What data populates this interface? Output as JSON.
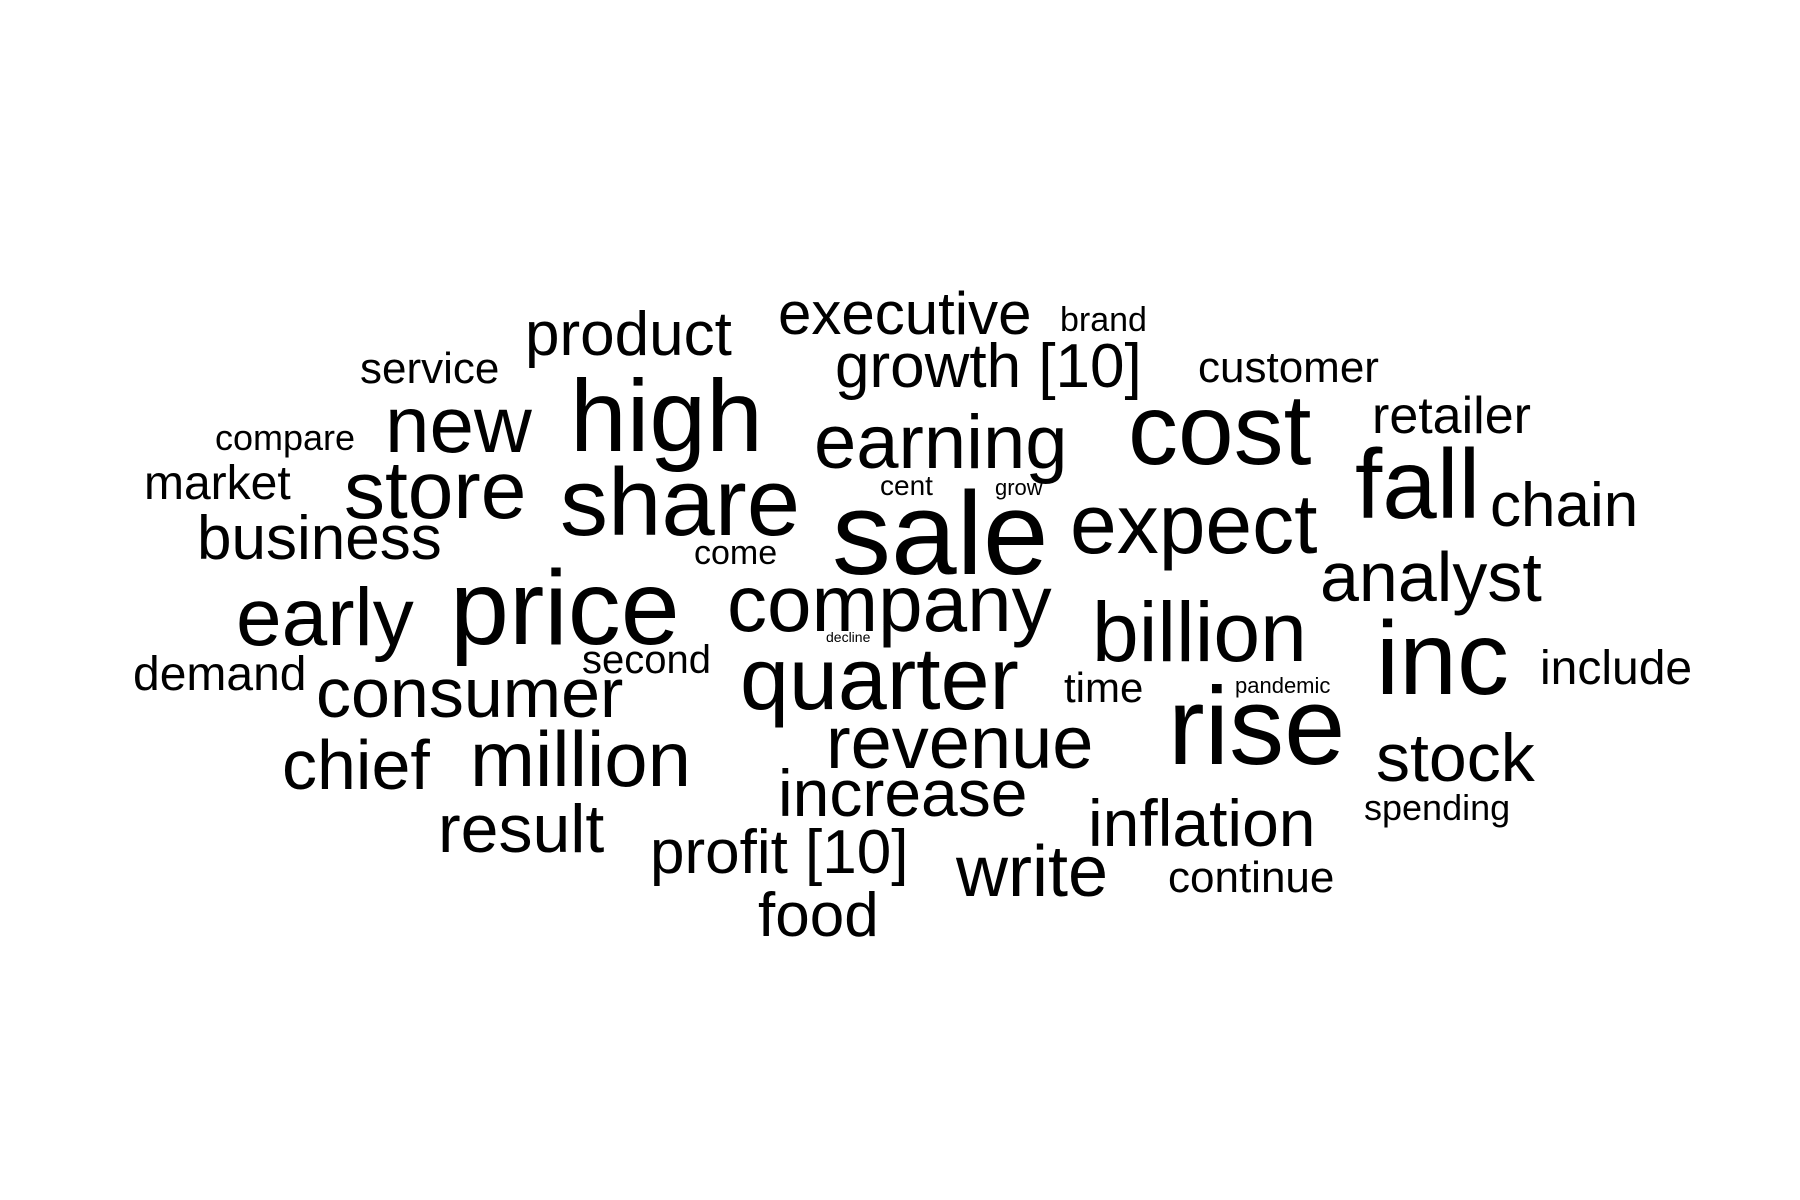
{
  "text_color": "#000000",
  "background": "#ffffff",
  "words": [
    "executive",
    "brand",
    "product",
    "growth [10]",
    "customer",
    "service",
    "high",
    "new",
    "cost",
    "retailer",
    "earning",
    "compare",
    "market",
    "store",
    "share",
    "cent",
    "grow",
    "fall",
    "chain",
    "expect",
    "sale",
    "business",
    "come",
    "analyst",
    "early",
    "price",
    "company",
    "billion",
    "decline",
    "inc",
    "demand",
    "second",
    "include",
    "consumer",
    "quarter",
    "time",
    "pandemic",
    "chief",
    "million",
    "revenue",
    "rise",
    "stock",
    "increase",
    "spending",
    "result",
    "inflation",
    "profit [10]",
    "write",
    "continue",
    "food"
  ]
}
